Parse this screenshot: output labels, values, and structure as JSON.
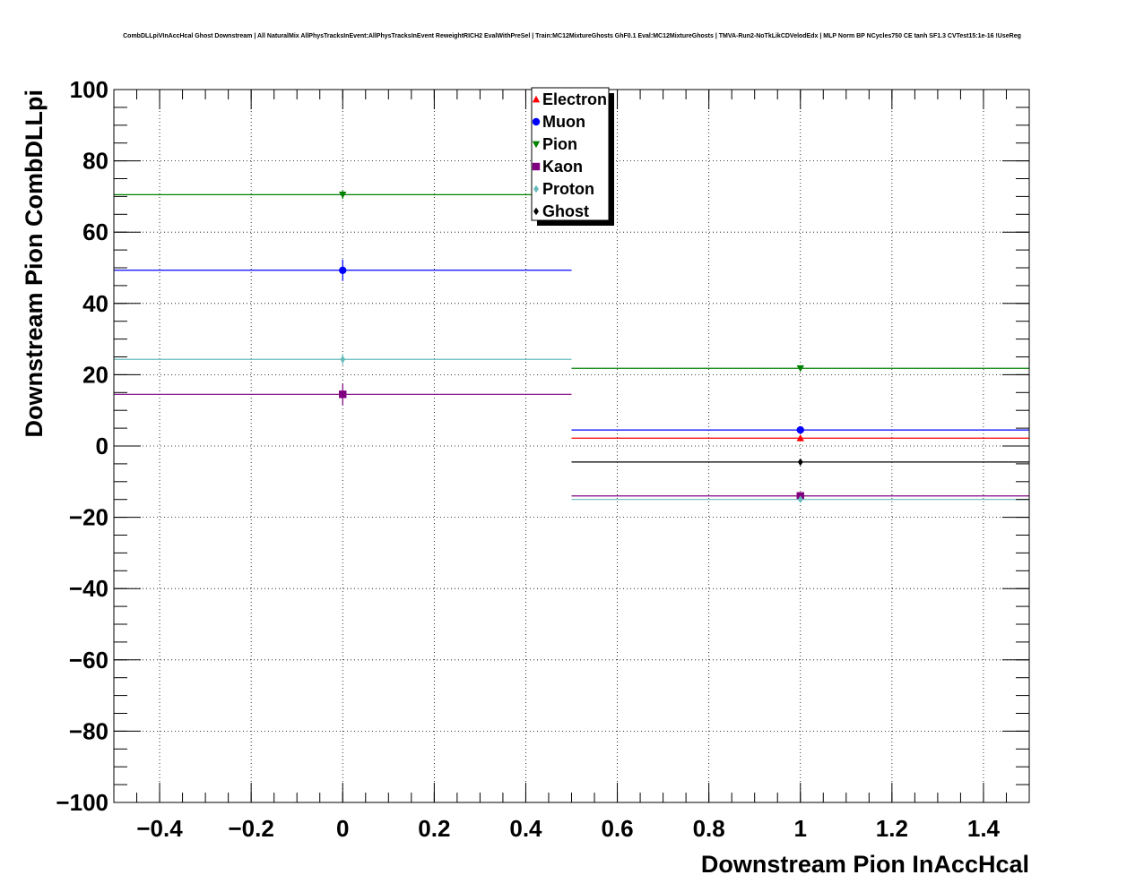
{
  "chart_data": {
    "type": "scatter",
    "title": "CombDLLpiVInAccHcal Ghost Downstream | All NaturalMix AllPhysTracksInEvent:AllPhysTracksInEvent ReweightRICH2 EvalWithPreSel | Train:MC12MixtureGhosts GhF0.1 Eval:MC12MixtureGhosts | TMVA-Run2-NoTkLikCDVelodEdx | MLP Norm BP NCycles750 CE tanh SF1.3 CVTest15:1e-16 !UseReg",
    "xlabel": "Downstream Pion InAccHcal",
    "ylabel": "Downstream Pion CombDLLpi",
    "xlim": [
      -0.5,
      1.5
    ],
    "ylim": [
      -100,
      100
    ],
    "x_ticks": [
      -0.4,
      -0.2,
      0,
      0.2,
      0.4,
      0.6,
      0.8,
      1,
      1.2,
      1.4
    ],
    "x_tick_labels": [
      "−0.4",
      "−0.2",
      "0",
      "0.2",
      "0.4",
      "0.6",
      "0.8",
      "1",
      "1.2",
      "1.4"
    ],
    "y_ticks": [
      -100,
      -80,
      -60,
      -40,
      -20,
      0,
      20,
      40,
      60,
      80,
      100
    ],
    "y_tick_labels": [
      "−100",
      "−80",
      "−60",
      "−40",
      "−20",
      "0",
      "20",
      "40",
      "60",
      "80",
      "100"
    ],
    "grid": true,
    "legend_position": "top-center",
    "series": [
      {
        "name": "Electron",
        "color": "#ff0000",
        "marker": "triangle-up",
        "points": [
          {
            "x": 1,
            "y": 2.2,
            "xerr": 0.5,
            "yerr": 0.8
          }
        ]
      },
      {
        "name": "Muon",
        "color": "#0000ff",
        "marker": "circle",
        "points": [
          {
            "x": 0,
            "y": 49.3,
            "xerr": 0.5,
            "yerr": 3
          },
          {
            "x": 1,
            "y": 4.5,
            "xerr": 0.5,
            "yerr": 0.8
          }
        ]
      },
      {
        "name": "Pion",
        "color": "#008000",
        "marker": "triangle-down",
        "points": [
          {
            "x": 0,
            "y": 70.5,
            "xerr": 0.5,
            "yerr": 1.2
          },
          {
            "x": 1,
            "y": 21.8,
            "xerr": 0.5,
            "yerr": 0.8
          }
        ]
      },
      {
        "name": "Kaon",
        "color": "#800080",
        "marker": "square",
        "points": [
          {
            "x": 0,
            "y": 14.5,
            "xerr": 0.5,
            "yerr": 3
          },
          {
            "x": 1,
            "y": -14,
            "xerr": 0.5,
            "yerr": 0.8
          }
        ]
      },
      {
        "name": "Proton",
        "color": "#66bbbb",
        "marker": "diamond",
        "points": [
          {
            "x": 0,
            "y": 24.3,
            "xerr": 0.5,
            "yerr": 1.5
          },
          {
            "x": 1,
            "y": -15,
            "xerr": 0.5,
            "yerr": 0.8
          }
        ]
      },
      {
        "name": "Ghost",
        "color": "#000000",
        "marker": "diamond",
        "points": [
          {
            "x": 1,
            "y": -4.5,
            "xerr": 0.5,
            "yerr": 0.5
          }
        ]
      }
    ]
  }
}
